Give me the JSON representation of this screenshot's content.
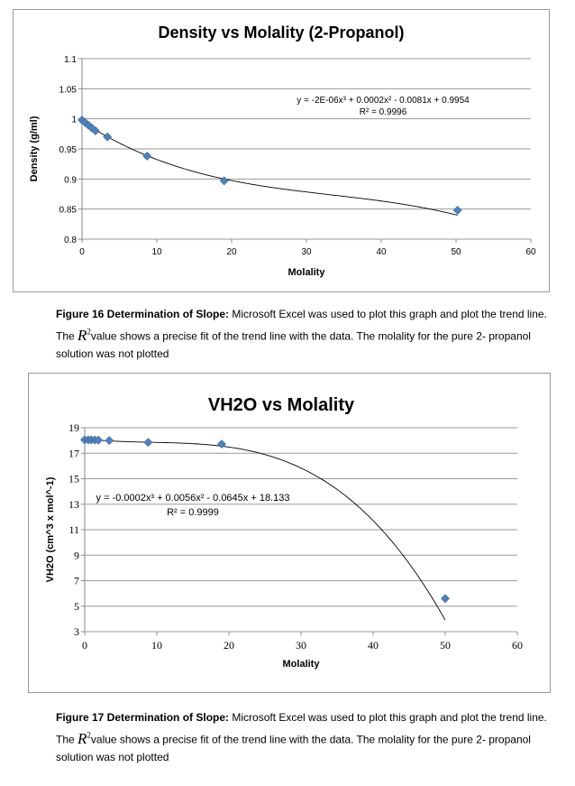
{
  "chart_data": [
    {
      "type": "scatter",
      "title": "Density vs Molality (2-Propanol)",
      "xlabel": "Molality",
      "ylabel": "Density (g/ml)",
      "xlim": [
        0,
        60
      ],
      "ylim": [
        0.8,
        1.1
      ],
      "xticks": [
        0,
        10,
        20,
        30,
        40,
        50,
        60
      ],
      "yticks": [
        0.8,
        0.85,
        0.9,
        0.95,
        1,
        1.05,
        1.1
      ],
      "ytick_labels": [
        "0.8",
        "0.85",
        "0.9",
        "0.95",
        "1",
        "1.05",
        "1.1"
      ],
      "grid": true,
      "series": [
        {
          "x": [
            0,
            0.4,
            0.9,
            1.3,
            1.8,
            3.4,
            8.7,
            19.0,
            50.2
          ],
          "y": [
            0.998,
            0.994,
            0.989,
            0.985,
            0.98,
            0.97,
            0.938,
            0.897,
            0.848
          ],
          "color": "#4f81bd",
          "marker": "diamond"
        }
      ],
      "trendline": {
        "type": "polynomial",
        "coefficients": [
          -2e-06,
          0.0002,
          -0.0081,
          0.9954
        ],
        "x_range": [
          0,
          50.2
        ]
      },
      "equation_label": "y = -2E-06x³ + 0.0002x² - 0.0081x + 0.9954",
      "r2_label": "R² = 0.9996"
    },
    {
      "type": "scatter",
      "title": "VH2O vs Molality",
      "xlabel": "Molality",
      "ylabel": "VH2O (cm^3 x mol^-1)",
      "xlim": [
        0,
        60
      ],
      "ylim": [
        3,
        19
      ],
      "xticks": [
        0,
        10,
        20,
        30,
        40,
        50,
        60
      ],
      "yticks": [
        3,
        5,
        7,
        9,
        11,
        13,
        15,
        17,
        19
      ],
      "ytick_labels": [
        "3",
        "5",
        "7",
        "9",
        "11",
        "13",
        "15",
        "17",
        "19"
      ],
      "grid": true,
      "series": [
        {
          "x": [
            0,
            0.5,
            0.9,
            1.4,
            1.9,
            3.4,
            8.8,
            19.0,
            50.0
          ],
          "y": [
            18.05,
            18.05,
            18.05,
            18.04,
            18.03,
            18.0,
            17.85,
            17.72,
            5.6
          ],
          "color": "#4f81bd",
          "marker": "diamond"
        }
      ],
      "trendline": {
        "type": "polynomial",
        "coefficients": [
          -0.0002,
          0.0056,
          -0.0645,
          18.133
        ],
        "x_range": [
          0,
          50
        ]
      },
      "equation_label": "y = -0.0002x³ + 0.0056x² - 0.0645x + 18.133",
      "r2_label": "R² = 0.9999"
    }
  ],
  "captions": [
    {
      "label": "Figure 16 Determination of Slope:",
      "text_before_symbol": " Microsoft Excel was used to plot this graph and plot the trend line.  The ",
      "symbol": "R",
      "symbol_sup": "2",
      "text_after_symbol": "value shows a precise fit of the trend line with the data.  The molality for the pure 2- propanol solution was not plotted"
    },
    {
      "label": "Figure 17 Determination of Slope:",
      "text_before_symbol": " Microsoft Excel was used to plot this graph and plot the trend line.  The ",
      "symbol": "R",
      "symbol_sup": "2",
      "text_after_symbol": "value shows a precise fit of the trend line with the data.  The molality for the pure 2- propanol solution was not plotted"
    }
  ]
}
